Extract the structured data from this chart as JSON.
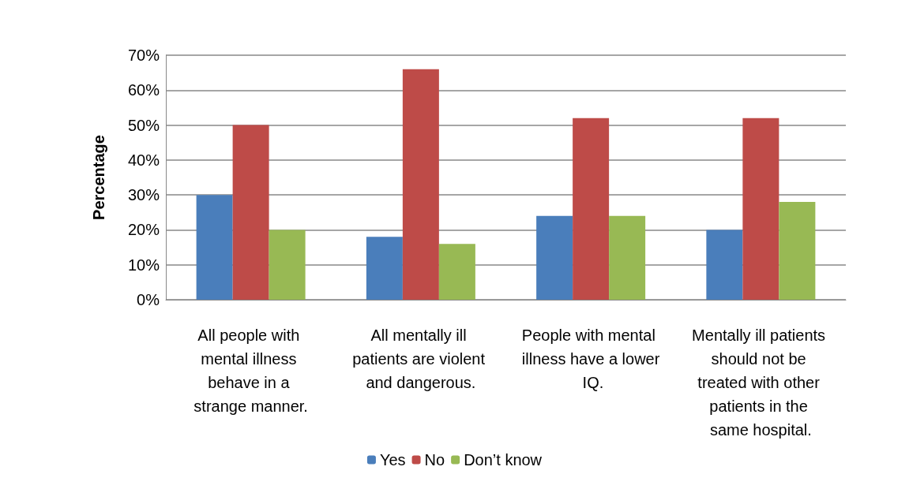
{
  "chart_data": {
    "type": "bar",
    "ylabel": "Percentage",
    "categories": [
      "All people with mental illness behave in a strange manner.",
      "All mentally ill patients are violent and dangerous.",
      "People with mental illness have a lower IQ.",
      "Mentally ill patients should not be treated with other patients in the same hospital."
    ],
    "series": [
      {
        "name": "Yes",
        "color": "#4a7ebb",
        "values": [
          30,
          18,
          24,
          20
        ]
      },
      {
        "name": "No",
        "color": "#be4b48",
        "values": [
          50,
          66,
          52,
          52
        ]
      },
      {
        "name": "Don’t know",
        "color": "#98b954",
        "values": [
          20,
          16,
          24,
          28
        ]
      }
    ],
    "ylim": [
      0,
      70
    ],
    "yticks": [
      {
        "value": 0,
        "label": "0%"
      },
      {
        "value": 10,
        "label": "10%"
      },
      {
        "value": 20,
        "label": "20%"
      },
      {
        "value": 30,
        "label": "30%"
      },
      {
        "value": 40,
        "label": "40%"
      },
      {
        "value": 50,
        "label": "50%"
      },
      {
        "value": 60,
        "label": "60%"
      },
      {
        "value": 70,
        "label": "70%"
      }
    ],
    "grid": true,
    "legend": "bottom"
  }
}
